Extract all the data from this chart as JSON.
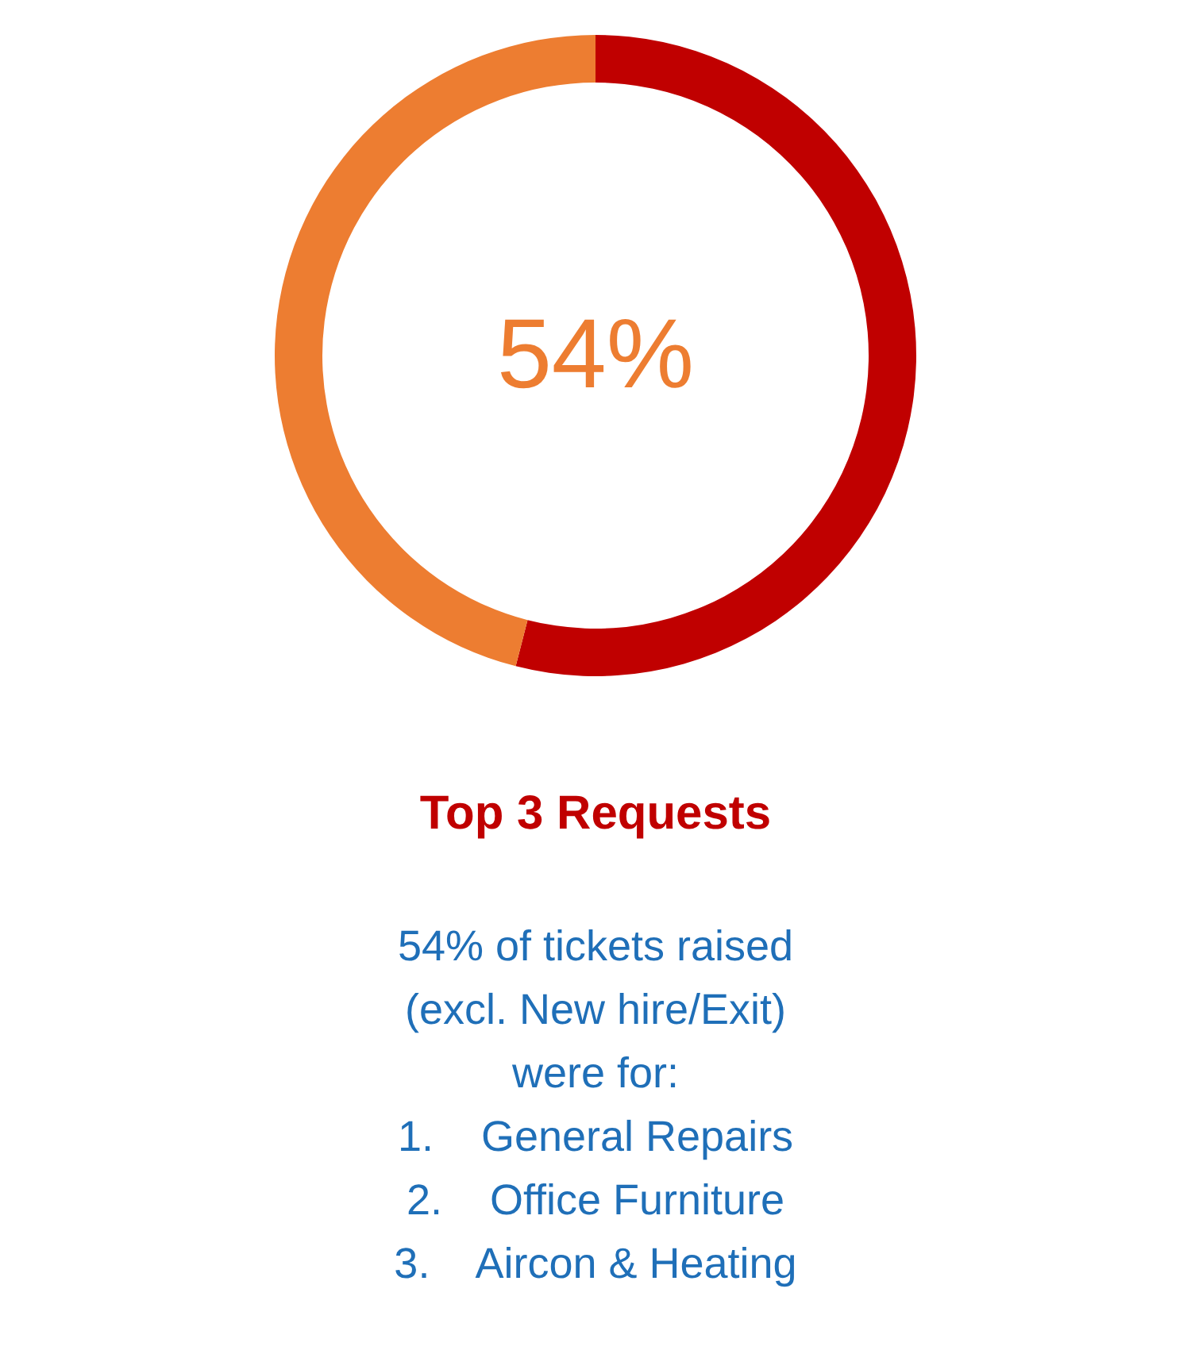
{
  "chart_data": {
    "type": "donut",
    "title": "Top 3 Requests",
    "categories": [
      null,
      null
    ],
    "values": [
      54,
      46
    ],
    "colors": [
      "#c00000",
      "#ed7d31"
    ],
    "annotations": [
      "54%",
      "54% of tickets raised",
      "(excl. New hire/Exit)",
      "were for:",
      "1.    General Repairs",
      "2.    Office Furniture",
      "3.    Aircon & Heating"
    ]
  }
}
